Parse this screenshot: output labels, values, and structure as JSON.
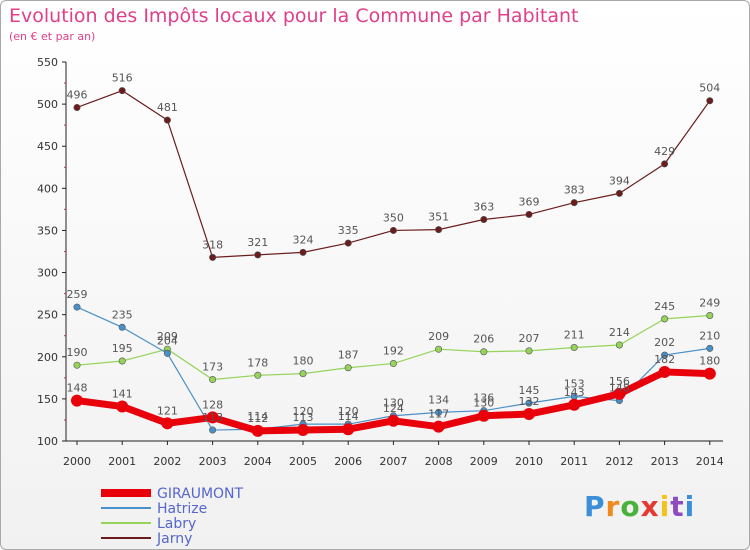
{
  "header": {
    "title": "Evolution des Impôts locaux pour la Commune par Habitant",
    "subtitle": "(en € et par an)"
  },
  "logo": {
    "text": "Proxiti",
    "colors": [
      "#3a8fd8",
      "#f08a1c",
      "#49b23d",
      "#e43a2f",
      "#f6c21a",
      "#8c4cc0",
      "#3a8fd8"
    ]
  },
  "chart_data": {
    "type": "line",
    "title": "Evolution des Impôts locaux pour la Commune par Habitant",
    "subtitle": "(en € et par an)",
    "xlabel": "",
    "ylabel": "",
    "ylim": [
      100,
      550
    ],
    "yticks": [
      100,
      150,
      200,
      250,
      300,
      350,
      400,
      450,
      500,
      550
    ],
    "grid": false,
    "legend": "bottom-left",
    "x": [
      "2000",
      "2001",
      "2002",
      "2003",
      "2004",
      "2005",
      "2006",
      "2007",
      "2008",
      "2009",
      "2010",
      "2011",
      "2012",
      "2013",
      "2014"
    ],
    "series": [
      {
        "name": "GIRAUMONT",
        "color": "#e8000b",
        "width": 7,
        "values": [
          148,
          141,
          121,
          128,
          112,
          113,
          114,
          124,
          117,
          130,
          132,
          143,
          156,
          182,
          180
        ]
      },
      {
        "name": "Hatrize",
        "color": "#4a90c8",
        "width": 1.2,
        "values": [
          259,
          235,
          204,
          113,
          114,
          120,
          120,
          130,
          134,
          136,
          145,
          153,
          148,
          202,
          210
        ]
      },
      {
        "name": "Labry",
        "color": "#95d35a",
        "width": 1.2,
        "values": [
          190,
          195,
          209,
          173,
          178,
          180,
          187,
          192,
          209,
          206,
          207,
          211,
          214,
          245,
          249
        ]
      },
      {
        "name": "Jarny",
        "color": "#6b1d1d",
        "width": 1.2,
        "values": [
          496,
          516,
          481,
          318,
          321,
          324,
          335,
          350,
          351,
          363,
          369,
          383,
          394,
          429,
          504
        ]
      }
    ]
  }
}
